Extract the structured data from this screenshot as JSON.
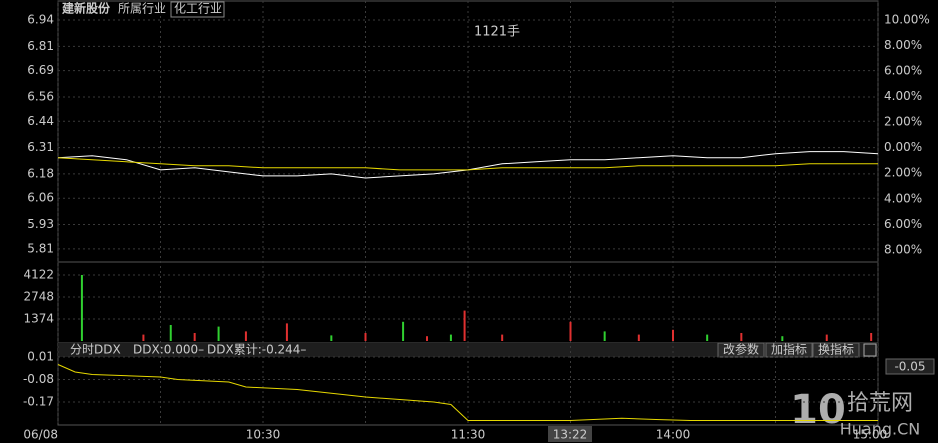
{
  "chart_data": [
    {
      "type": "line",
      "title": "建新股份",
      "labels": [
        "所属行业",
        "化工行业"
      ],
      "annotations": [
        "1121手",
        "13:22"
      ],
      "x": [
        0,
        10,
        20,
        30,
        40,
        50,
        60,
        70,
        80,
        90,
        100,
        110,
        120,
        130,
        140,
        150,
        160,
        170,
        180,
        190,
        200,
        210,
        220,
        230,
        240
      ],
      "xlim": [
        0,
        240
      ],
      "xticks": [
        {
          "value": 0,
          "label": "06/08"
        },
        {
          "value": 60,
          "label": "10:30"
        },
        {
          "value": 120,
          "label": "11:30"
        },
        {
          "value": 180,
          "label": "14:00"
        },
        {
          "value": 240,
          "label": "15:00"
        }
      ],
      "xgrid": [
        0,
        30,
        60,
        90,
        120,
        150,
        180,
        210,
        240
      ],
      "series": [
        {
          "color": "#ffffff",
          "values": [
            6.26,
            6.27,
            6.25,
            6.2,
            6.21,
            6.19,
            6.17,
            6.17,
            6.18,
            6.16,
            6.17,
            6.18,
            6.2,
            6.23,
            6.24,
            6.25,
            6.25,
            6.26,
            6.27,
            6.26,
            6.26,
            6.28,
            6.29,
            6.29,
            6.28
          ]
        },
        {
          "color": "#e6d800",
          "values": [
            6.26,
            6.25,
            6.24,
            6.23,
            6.22,
            6.22,
            6.21,
            6.21,
            6.21,
            6.21,
            6.2,
            6.2,
            6.2,
            6.21,
            6.21,
            6.21,
            6.21,
            6.22,
            6.22,
            6.22,
            6.22,
            6.22,
            6.23,
            6.23,
            6.23
          ]
        }
      ],
      "ylim": [
        5.745,
        6.94
      ],
      "yticks": [
        6.94,
        6.81,
        6.69,
        6.56,
        6.44,
        6.31,
        6.18,
        6.06,
        5.93,
        5.81
      ],
      "y2lim": [
        -8.95,
        10
      ],
      "y2ticks": [
        {
          "value": 10,
          "label": "10.00%"
        },
        {
          "value": 8,
          "label": "8.00%"
        },
        {
          "value": 6,
          "label": "6.00%"
        },
        {
          "value": 4,
          "label": "4.00%"
        },
        {
          "value": 2,
          "label": "2.00%"
        },
        {
          "value": 0,
          "label": "0.00%"
        },
        {
          "value": -2,
          "label": "2.00%"
        },
        {
          "value": -4,
          "label": "4.00%"
        },
        {
          "value": -6,
          "label": "6.00%"
        },
        {
          "value": -8,
          "label": "8.00%"
        }
      ],
      "grid": true
    },
    {
      "type": "bar",
      "x": [
        7,
        25,
        33,
        40,
        47,
        55,
        67,
        80,
        90,
        101,
        108,
        115,
        119,
        130,
        150,
        160,
        170,
        180,
        190,
        200,
        212,
        225,
        238
      ],
      "values": [
        4122,
        400,
        1000,
        500,
        900,
        600,
        1100,
        350,
        500,
        1200,
        300,
        400,
        1900,
        400,
        1200,
        600,
        400,
        700,
        400,
        500,
        300,
        400,
        500
      ],
      "colors": [
        "#30d030",
        "#e03030",
        "#30d030",
        "#e03030",
        "#30d030",
        "#e03030",
        "#e03030",
        "#30d030",
        "#e03030",
        "#30d030",
        "#e03030",
        "#30d030",
        "#e03030",
        "#e03030",
        "#e03030",
        "#30d030",
        "#e03030",
        "#e03030",
        "#30d030",
        "#e03030",
        "#30d030",
        "#e03030",
        "#e03030"
      ],
      "ylim": [
        0,
        4934
      ],
      "yticks": [
        4122,
        2748,
        1374
      ],
      "grid": true
    },
    {
      "type": "line",
      "title": "分时DDX",
      "annotations": [
        "DDX:0.000–",
        "DDX累计:-0.244–",
        "-0.05"
      ],
      "buttons": [
        "改参数",
        "加指标",
        "换指标"
      ],
      "x": [
        0,
        5,
        10,
        30,
        35,
        50,
        55,
        70,
        90,
        100,
        110,
        115,
        120,
        150,
        165,
        175,
        185,
        240
      ],
      "series": [
        {
          "color": "#e6d800",
          "values": [
            -0.02,
            -0.05,
            -0.06,
            -0.07,
            -0.08,
            -0.09,
            -0.11,
            -0.12,
            -0.15,
            -0.16,
            -0.17,
            -0.18,
            -0.244,
            -0.244,
            -0.235,
            -0.24,
            -0.244,
            -0.244
          ]
        }
      ],
      "ylim": [
        -0.254,
        0.058
      ],
      "yticks": [
        0.01,
        -0.08,
        -0.17
      ],
      "grid": true
    }
  ],
  "watermark": {
    "logo": "10",
    "name": "拾荒网",
    "site": "Huang.CN"
  }
}
